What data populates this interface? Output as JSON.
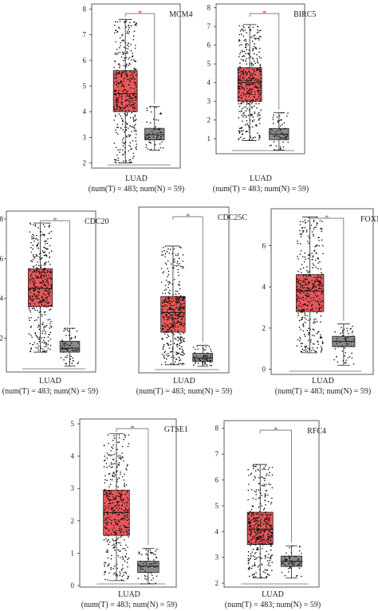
{
  "colors": {
    "tumor_fill": "#e8575a",
    "normal_fill": "#8a8a8a",
    "significance": "#e23b3b",
    "points": "#111111",
    "frame": "#333333"
  },
  "chart_data": [
    {
      "type": "box",
      "gene": "MCM4",
      "dataset": "LUAD",
      "caption": "(num(T) = 483; num(N) = 59)",
      "significance": "*",
      "ylim": [
        1.8,
        8.2
      ],
      "yticks": [
        2,
        3,
        4,
        5,
        6,
        7,
        8
      ],
      "ytick_labels": [
        "2",
        "3",
        "4",
        "5",
        "6",
        "7",
        "8"
      ],
      "groups": [
        {
          "group": "T",
          "n": 483,
          "min": 2.0,
          "q1": 4.0,
          "median": 4.7,
          "q3": 5.6,
          "max": 7.6
        },
        {
          "group": "N",
          "n": 59,
          "min": 2.5,
          "q1": 2.9,
          "median": 3.1,
          "q3": 3.35,
          "max": 4.2
        }
      ]
    },
    {
      "type": "box",
      "gene": "BIRC5",
      "dataset": "LUAD",
      "caption": "(num(T) = 483; num(N) = 59)",
      "significance": "*",
      "ylim": [
        0.2,
        8.2
      ],
      "yticks": [
        1,
        2,
        3,
        4,
        5,
        6,
        7,
        8
      ],
      "ytick_labels": [
        "1",
        "2",
        "3",
        "4",
        "5",
        "6",
        "7",
        "8"
      ],
      "groups": [
        {
          "group": "T",
          "n": 483,
          "min": 0.9,
          "q1": 3.0,
          "median": 4.0,
          "q3": 4.8,
          "max": 7.1
        },
        {
          "group": "N",
          "n": 59,
          "min": 0.4,
          "q1": 0.95,
          "median": 1.25,
          "q3": 1.55,
          "max": 2.4
        }
      ]
    },
    {
      "type": "box",
      "gene": "CDC20",
      "dataset": "LUAD",
      "caption": "(num(T) = 483; num(N) = 59)",
      "significance": "*",
      "ylim": [
        0.3,
        8.4
      ],
      "yticks": [
        2,
        4,
        6,
        8
      ],
      "ytick_labels": [
        "2",
        "4",
        "6",
        "8"
      ],
      "groups": [
        {
          "group": "T",
          "n": 483,
          "min": 1.3,
          "q1": 3.6,
          "median": 4.5,
          "q3": 5.5,
          "max": 7.8
        },
        {
          "group": "N",
          "n": 59,
          "min": 0.6,
          "q1": 1.3,
          "median": 1.5,
          "q3": 1.85,
          "max": 2.5
        }
      ]
    },
    {
      "type": "box",
      "gene": "CDC25C",
      "dataset": "LUAD",
      "caption": "(num(T) = 483; num(N) = 59)",
      "significance": "*",
      "ylim": [
        -0.15,
        4.95
      ],
      "yticks": [],
      "ytick_labels": [],
      "groups": [
        {
          "group": "T",
          "n": 483,
          "min": 0.1,
          "q1": 1.1,
          "median": 1.7,
          "q3": 2.2,
          "max": 3.75
        },
        {
          "group": "N",
          "n": 59,
          "min": 0.05,
          "q1": 0.2,
          "median": 0.3,
          "q3": 0.45,
          "max": 0.7
        }
      ]
    },
    {
      "type": "box",
      "gene": "FOXM1",
      "dataset": "LUAD",
      "caption": "(num(T) = 483; num(N) = 59)",
      "significance": "*",
      "ylim": [
        -0.25,
        7.8
      ],
      "yticks": [
        0,
        2,
        4,
        6
      ],
      "ytick_labels": [
        "0",
        "2",
        "4",
        "6"
      ],
      "groups": [
        {
          "group": "T",
          "n": 483,
          "min": 0.8,
          "q1": 2.8,
          "median": 3.8,
          "q3": 4.6,
          "max": 7.4
        },
        {
          "group": "N",
          "n": 59,
          "min": 0.2,
          "q1": 1.1,
          "median": 1.35,
          "q3": 1.6,
          "max": 2.2
        }
      ]
    },
    {
      "type": "box",
      "gene": "GTSE1",
      "dataset": "LUAD",
      "caption": "(num(T) = 483; num(N) = 59)",
      "significance": "*",
      "ylim": [
        -0.05,
        5.15
      ],
      "yticks": [
        0,
        1,
        2,
        3,
        4,
        5
      ],
      "ytick_labels": [
        "0",
        "1",
        "2",
        "3",
        "4",
        "5"
      ],
      "groups": [
        {
          "group": "T",
          "n": 483,
          "min": 0.15,
          "q1": 1.55,
          "median": 2.25,
          "q3": 2.95,
          "max": 4.7
        },
        {
          "group": "N",
          "n": 59,
          "min": 0.05,
          "q1": 0.4,
          "median": 0.6,
          "q3": 0.75,
          "max": 1.15
        }
      ]
    },
    {
      "type": "box",
      "gene": "RFC4",
      "dataset": "LUAD",
      "caption": "(num(T) = 483; num(N) = 59)",
      "significance": "*",
      "ylim": [
        1.85,
        8.3
      ],
      "yticks": [
        2,
        3,
        4,
        5,
        6,
        7,
        8
      ],
      "ytick_labels": [
        "2",
        "3",
        "4",
        "5",
        "6",
        "7",
        "8"
      ],
      "groups": [
        {
          "group": "T",
          "n": 483,
          "min": 2.2,
          "q1": 3.5,
          "median": 4.1,
          "q3": 4.75,
          "max": 6.6
        },
        {
          "group": "N",
          "n": 59,
          "min": 2.2,
          "q1": 2.65,
          "median": 2.85,
          "q3": 3.05,
          "max": 3.45
        }
      ]
    }
  ]
}
